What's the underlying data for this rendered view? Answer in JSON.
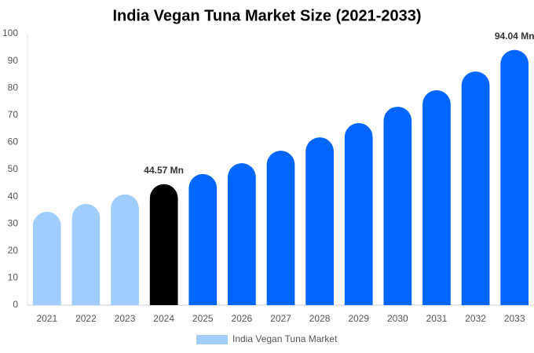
{
  "chart_data": {
    "type": "bar",
    "title": "India Vegan Tuna Market Size (2021-2033)",
    "categories": [
      "2021",
      "2022",
      "2023",
      "2024",
      "2025",
      "2026",
      "2027",
      "2028",
      "2029",
      "2030",
      "2031",
      "2032",
      "2033"
    ],
    "series": [
      {
        "name": "India Vegan Tuna Market",
        "color": "#a0cdfc",
        "colors": [
          "#a0cdfc",
          "#a0cdfc",
          "#a0cdfc",
          "#000000",
          "#0066ff",
          "#0066ff",
          "#0066ff",
          "#0066ff",
          "#0066ff",
          "#0066ff",
          "#0066ff",
          "#0066ff",
          "#0066ff"
        ],
        "values": [
          34.4,
          37.3,
          40.8,
          44.57,
          48.3,
          52.3,
          56.9,
          61.8,
          67.1,
          73.1,
          79.2,
          86.1,
          94.04
        ],
        "value_labels": [
          null,
          null,
          null,
          "44.57 Mn",
          null,
          null,
          null,
          null,
          null,
          null,
          null,
          null,
          "94.04 Mn"
        ]
      }
    ],
    "ylim": [
      0,
      100
    ],
    "yticks": [
      0,
      10,
      20,
      30,
      40,
      50,
      60,
      70,
      80,
      90,
      100
    ],
    "grid": false
  }
}
